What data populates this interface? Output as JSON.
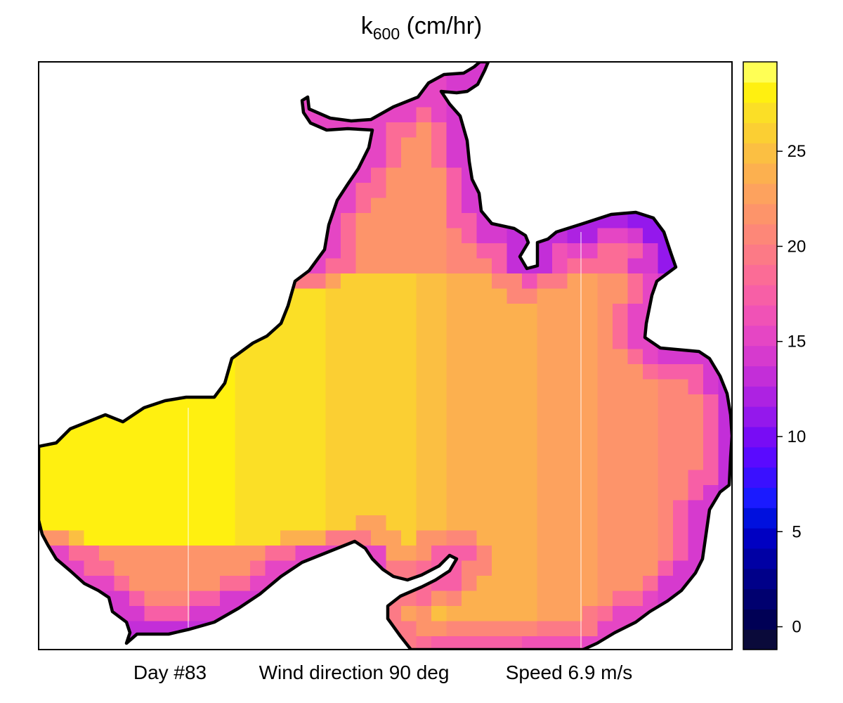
{
  "chart_data": {
    "type": "heatmap",
    "title": {
      "main": "k",
      "subscript": "600",
      "unit": " (cm/hr)"
    },
    "caption": {
      "day": "Day #83",
      "wind": "Wind direction 90 deg",
      "speed": "Speed 6.9 m/s"
    },
    "colorbar": {
      "ticks": [
        0,
        5,
        10,
        15,
        20,
        25
      ],
      "tick_labels": [
        "0",
        "5",
        "10",
        "15",
        "20",
        "25"
      ],
      "range": [
        -1.2,
        29.7
      ],
      "bands": 29,
      "colors": [
        "#0a0a3a",
        "#000055",
        "#00006f",
        "#000089",
        "#0000a4",
        "#0000c2",
        "#0010de",
        "#1a1aff",
        "#3a10ff",
        "#5a0aff",
        "#780cf5",
        "#9418ec",
        "#ad22e2",
        "#c32ed8",
        "#d63ace",
        "#e546c4",
        "#f052b6",
        "#f75fa6",
        "#fb6c96",
        "#fc7a86",
        "#fd8778",
        "#fd946a",
        "#fda25e",
        "#fcb04f",
        "#fbbf42",
        "#fbcf33",
        "#fbdf26",
        "#fff010",
        "#ffff55"
      ]
    },
    "grid": {
      "x_range": [
        0,
        1
      ],
      "y_range": [
        0,
        1
      ],
      "axes": "none",
      "gridlines": "off",
      "legend": "right"
    }
  }
}
